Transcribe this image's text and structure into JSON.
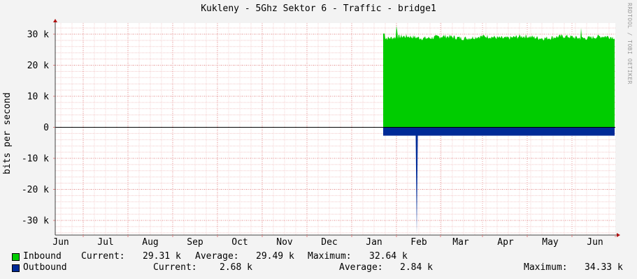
{
  "chart_data": {
    "type": "area",
    "title": "Kukleny - 5Ghz Sektor 6 - Traffic - bridge1",
    "ylabel": "bits per second",
    "xlabel": "",
    "watermark": "RRDTOOL / TOBI OETIKER",
    "x_ticks": [
      "Jun",
      "Jul",
      "Aug",
      "Sep",
      "Oct",
      "Nov",
      "Dec",
      "Jan",
      "Feb",
      "Mar",
      "Apr",
      "May",
      "Jun"
    ],
    "y_ticks": [
      {
        "value": 30000,
        "label": "30 k"
      },
      {
        "value": 20000,
        "label": "20 k"
      },
      {
        "value": 10000,
        "label": "10 k"
      },
      {
        "value": 0,
        "label": "0"
      },
      {
        "value": -10000,
        "label": "-10 k"
      },
      {
        "value": -20000,
        "label": "-20 k"
      },
      {
        "value": -30000,
        "label": "-30 k"
      }
    ],
    "ylim": [
      -34000,
      32000
    ],
    "grid": true,
    "series": [
      {
        "name": "Inbound",
        "color": "#00cc00",
        "data_start": "Jan 22",
        "data_end": "Jun 28",
        "typical_value": 29000,
        "current": "29.31 k",
        "average": "29.49 k",
        "maximum": "32.64 k"
      },
      {
        "name": "Outbound",
        "color": "#002a97",
        "plotted_negative": true,
        "data_start": "Jan 22",
        "data_end": "Jun 28",
        "typical_value": 2700,
        "spike_value": 34330,
        "spike_date": "Feb 1",
        "current": "2.68 k",
        "average": "2.84 k",
        "maximum": "34.33 k"
      }
    ]
  },
  "legend": {
    "inbound": {
      "name": "Inbound",
      "current_label": "Current:",
      "current": "29.31 k",
      "average_label": "Average:",
      "average": "29.49 k",
      "maximum_label": "Maximum:",
      "maximum": "32.64 k"
    },
    "outbound": {
      "name": "Outbound",
      "current_label": "Current:",
      "current": "2.68 k",
      "average_label": "Average:",
      "average": "2.84 k",
      "maximum_label": "Maximum:",
      "maximum": "34.33 k"
    }
  }
}
